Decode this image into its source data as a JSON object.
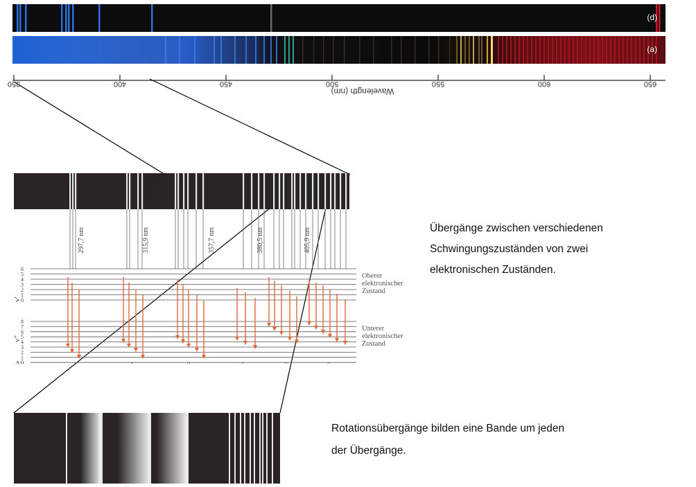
{
  "spectra": {
    "top_label": "(d)",
    "bottom_label": "(a)",
    "axis_title": "Wavelength (nm)",
    "ticks": [
      "350",
      "400",
      "450",
      "500",
      "550",
      "600",
      "650"
    ],
    "colors": {
      "background": "#0c0c0c",
      "emission_blue": "#2c6fe0",
      "emission_red": "#c41a2a",
      "bright_line": "#f2d56b"
    }
  },
  "band_spectrum": {
    "line_labels": [
      "297,7 nm",
      "315,9 nm",
      "357,7 nm",
      "380,5 nm",
      "405,9 nm"
    ]
  },
  "levels": {
    "upper_symbol": "v′",
    "lower_symbol": "v″",
    "upper_numbers": [
      "6",
      "5",
      "4",
      "3",
      "2",
      "1",
      "0"
    ],
    "lower_numbers": [
      "8",
      "7",
      "6",
      "5",
      "4",
      "3",
      "2",
      "1",
      "0"
    ],
    "upper_label": [
      "Oberer",
      "elektronischer",
      "Zustand"
    ],
    "lower_label": [
      "Unterer",
      "elektronischer",
      "Zustand"
    ],
    "delta_symbol": "Δv",
    "delta_values": [
      "−2",
      "−1",
      "0",
      "1",
      "2",
      "3"
    ],
    "arrow_color": "#e06a3a"
  },
  "annotations": {
    "vibrational": [
      "Übergänge zwischen verschiedenen",
      "Schwingungszuständen von zwei",
      "elektronischen Zuständen."
    ],
    "rotational": [
      "Rotationsübergänge bilden eine Bande um jeden",
      "der Übergänge."
    ]
  }
}
